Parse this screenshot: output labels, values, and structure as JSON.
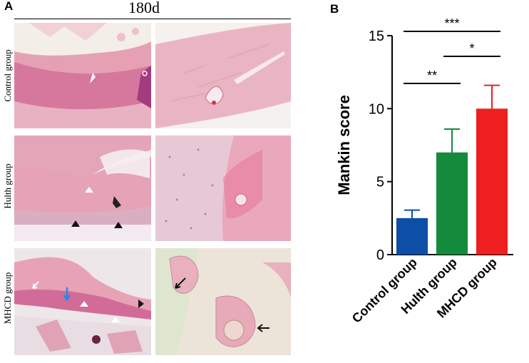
{
  "panel_a": {
    "letter": "A",
    "time_label": "180d",
    "rows": [
      {
        "label": "Control group"
      },
      {
        "label": "Hulth group"
      },
      {
        "label": "MHCD group"
      }
    ]
  },
  "panel_b": {
    "letter": "B"
  },
  "colors": {
    "control": "#0d4ea6",
    "hulth": "#138a3c",
    "mhcd": "#ef1f1f",
    "tissue_pink": "#e8a6b8",
    "tissue_dark": "#c25a86",
    "background_tissue": "#f3e7ea"
  },
  "chart_data": {
    "type": "bar",
    "categories": [
      "Control group",
      "Hulth group",
      "MHCD group"
    ],
    "values": [
      2.5,
      7.0,
      10.0
    ],
    "errors": [
      0.55,
      1.6,
      1.6
    ],
    "ylabel": "Mankin score",
    "ylim": [
      0,
      15
    ],
    "yticks": [
      0,
      5,
      10,
      15
    ],
    "significance": [
      {
        "from": 0,
        "to": 1,
        "label": "**"
      },
      {
        "from": 1,
        "to": 2,
        "label": "*"
      },
      {
        "from": 0,
        "to": 2,
        "label": "***"
      }
    ]
  }
}
